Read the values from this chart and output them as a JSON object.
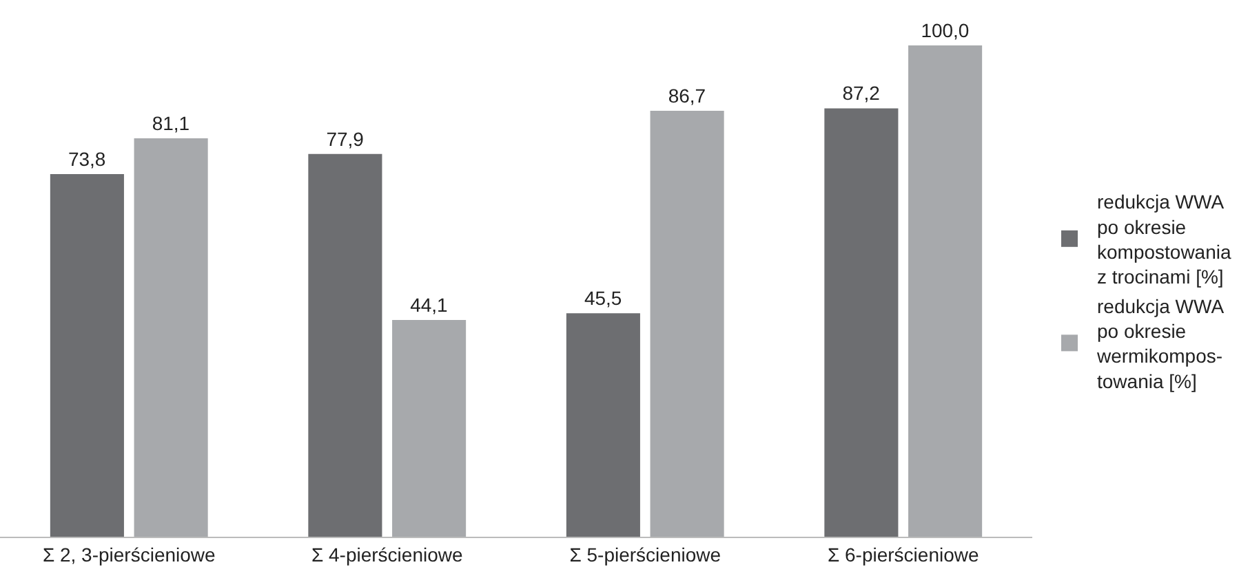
{
  "chart_data": {
    "type": "bar",
    "categories": [
      "Σ 2, 3-pierścieniowe",
      "Σ 4-pierścieniowe",
      "Σ 5-pierścieniowe",
      "Σ 6-pierścieniowe"
    ],
    "series": [
      {
        "name": "redukcja WWA\npo okresie\nkompostowania\nz trocinami [%]",
        "color": "#6d6e71",
        "values": [
          73.8,
          77.9,
          45.5,
          87.2
        ],
        "value_labels": [
          "73,8",
          "77,9",
          "45,5",
          "87,2"
        ]
      },
      {
        "name": "redukcja WWA\npo okresie\nwermikompos-\ntowania [%]",
        "color": "#a7a9ac",
        "values": [
          81.1,
          44.1,
          86.7,
          100.0
        ],
        "value_labels": [
          "81,1",
          "44,1",
          "86,7",
          "100,0"
        ]
      }
    ],
    "ylim": [
      0,
      100
    ],
    "tick_labels": "x",
    "legend": "right"
  }
}
